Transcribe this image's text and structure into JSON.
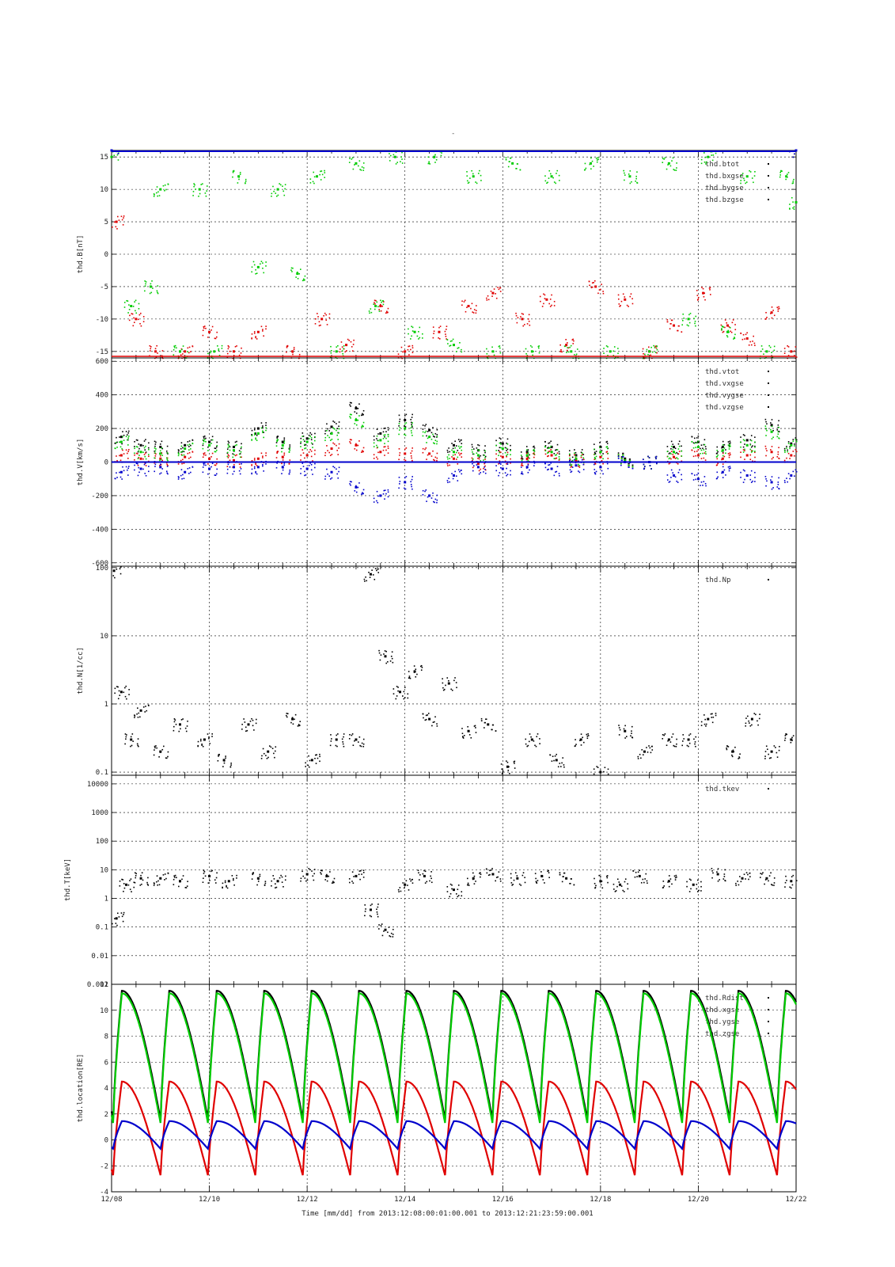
{
  "figure": {
    "top_label": "-",
    "x_axis_title": "Time [mm/dd]  from 2013:12:08:00:01:00.001  to  2013:12:21:23:59:00.001",
    "x_ticks": [
      "12/08",
      "12/10",
      "12/12",
      "12/14",
      "12/16",
      "12/18",
      "12/20",
      "12/22"
    ],
    "colors": {
      "black": "#000000",
      "red": "#e00000",
      "green": "#00cc00",
      "blue": "#0000cc"
    }
  },
  "chart_data": [
    {
      "type": "scatter",
      "ylabel": "thd.B[nT]",
      "ylim": [
        -16,
        16
      ],
      "yticks": [
        "15",
        "10",
        "5",
        "0",
        "-5",
        "-10",
        "-15"
      ],
      "legend": [
        "thd.btot",
        "thd.bxgse",
        "thd.bygse",
        "thd.bzgse"
      ],
      "legend_placement": "top-right",
      "series": [
        {
          "name": "thd.btot",
          "color": "black",
          "x": [
            0.0,
            14.0
          ],
          "y": [
            16,
            16
          ]
        },
        {
          "name": "thd.bxgse",
          "color": "red",
          "x": [
            0.1,
            0.5,
            0.9,
            1.5,
            2.0,
            2.5,
            3.0,
            3.7,
            4.3,
            4.8,
            5.5,
            6.0,
            6.7,
            7.3,
            7.8,
            8.4,
            8.9,
            9.3,
            9.9,
            10.5,
            11.0,
            11.5,
            12.1,
            12.6,
            13.0,
            13.5,
            13.9
          ],
          "y": [
            5,
            -10,
            -15,
            -15,
            -12,
            -15,
            -12,
            -15,
            -10,
            -14,
            -8,
            -15,
            -12,
            -8,
            -6,
            -10,
            -7,
            -14,
            -5,
            -7,
            -15,
            -11,
            -6,
            -11,
            -13,
            -9,
            -15
          ]
        },
        {
          "name": "thd.bygse",
          "color": "green",
          "x": [
            0.0,
            0.4,
            0.8,
            1.0,
            1.4,
            1.8,
            2.1,
            2.6,
            3.0,
            3.4,
            3.8,
            4.2,
            4.6,
            5.0,
            5.4,
            5.8,
            6.2,
            6.6,
            7.0,
            7.4,
            7.8,
            8.2,
            8.6,
            9.0,
            9.4,
            9.8,
            10.2,
            10.6,
            11.0,
            11.4,
            11.8,
            12.2,
            12.6,
            13.0,
            13.4,
            13.8,
            14.0
          ],
          "y": [
            15,
            -8,
            -5,
            10,
            -15,
            10,
            -15,
            12,
            -2,
            10,
            -3,
            12,
            -15,
            14,
            -8,
            15,
            -12,
            15,
            -14,
            12,
            -15,
            14,
            -15,
            12,
            -15,
            14,
            -15,
            12,
            -15,
            14,
            -10,
            15,
            -12,
            12,
            -15,
            12,
            8
          ]
        },
        {
          "name": "thd.bzgse",
          "color": "blue",
          "x": [
            0.0,
            14.0
          ],
          "y": [
            16,
            16
          ]
        }
      ]
    },
    {
      "type": "scatter",
      "ylabel": "thd.V[km/s]",
      "ylim": [
        -620,
        620
      ],
      "yticks": [
        "600",
        "400",
        "200",
        "0",
        "-200",
        "-400",
        "-600"
      ],
      "legend": [
        "thd.vtot",
        "thd.vxgse",
        "thd.vygse",
        "thd.vzgse"
      ],
      "legend_placement": "top-right",
      "series": [
        {
          "name": "thd.vtot",
          "color": "black",
          "x": [
            0.2,
            0.6,
            1.0,
            1.5,
            2.0,
            2.5,
            3.0,
            3.5,
            4.0,
            4.5,
            5.0,
            5.5,
            6.0,
            6.5,
            7.0,
            7.5,
            8.0,
            8.5,
            9.0,
            9.5,
            10.0,
            10.5,
            11.0,
            11.5,
            12.0,
            12.5,
            13.0,
            13.5,
            13.9
          ],
          "y": [
            150,
            100,
            90,
            100,
            120,
            90,
            200,
            120,
            140,
            210,
            320,
            170,
            250,
            190,
            100,
            70,
            110,
            60,
            90,
            40,
            90,
            20,
            0,
            90,
            120,
            90,
            130,
            220,
            110
          ]
        },
        {
          "name": "thd.vxgse",
          "color": "red",
          "x": [
            0.2,
            0.6,
            1.0,
            1.5,
            2.0,
            2.5,
            3.0,
            3.5,
            4.0,
            4.5,
            5.0,
            5.5,
            6.0,
            6.5,
            7.0,
            7.5,
            8.0,
            8.5,
            9.0,
            9.5,
            10.0,
            10.5,
            11.0,
            11.5,
            12.0,
            12.5,
            13.0,
            13.5,
            13.9
          ],
          "y": [
            40,
            20,
            20,
            30,
            20,
            10,
            20,
            30,
            40,
            80,
            100,
            60,
            50,
            50,
            20,
            -10,
            30,
            20,
            40,
            10,
            30,
            10,
            0,
            30,
            40,
            20,
            40,
            60,
            40
          ]
        },
        {
          "name": "thd.vygse",
          "color": "green",
          "x": [
            0.2,
            0.6,
            1.0,
            1.5,
            2.0,
            2.5,
            3.0,
            3.5,
            4.0,
            4.5,
            5.0,
            5.5,
            6.0,
            6.5,
            7.0,
            7.5,
            8.0,
            8.5,
            9.0,
            9.5,
            10.0,
            10.5,
            11.0,
            11.5,
            12.0,
            12.5,
            13.0,
            13.5,
            13.9
          ],
          "y": [
            120,
            60,
            50,
            80,
            100,
            70,
            170,
            100,
            120,
            170,
            250,
            130,
            200,
            150,
            60,
            40,
            80,
            40,
            60,
            20,
            60,
            10,
            0,
            60,
            90,
            70,
            100,
            180,
            100
          ]
        },
        {
          "name": "thd.vzgse",
          "color": "blue",
          "x": [
            0.2,
            0.6,
            1.0,
            1.5,
            2.0,
            2.5,
            3.0,
            3.5,
            4.0,
            4.5,
            5.0,
            5.5,
            6.0,
            6.5,
            7.0,
            7.5,
            8.0,
            8.5,
            9.0,
            9.5,
            10.0,
            10.5,
            11.0,
            11.5,
            12.0,
            12.5,
            13.0,
            13.5,
            13.9
          ],
          "y": [
            -60,
            -40,
            -30,
            -60,
            -40,
            -30,
            -30,
            -30,
            -40,
            -60,
            -150,
            -200,
            -120,
            -200,
            -80,
            -30,
            -40,
            -30,
            -40,
            -20,
            -30,
            0,
            0,
            -80,
            -100,
            -60,
            -80,
            -120,
            -80
          ]
        }
      ]
    },
    {
      "type": "scatter",
      "ylabel": "thd.N[1/cc]",
      "yscale": "log",
      "ylim": [
        0.09,
        105
      ],
      "yticks": [
        "100",
        "10",
        "1",
        "0.1"
      ],
      "legend": [
        "thd.Np"
      ],
      "legend_placement": "top-right",
      "series": [
        {
          "name": "thd.Np",
          "color": "black",
          "x": [
            0.05,
            0.2,
            0.4,
            0.6,
            1.0,
            1.4,
            1.9,
            2.3,
            2.8,
            3.2,
            3.7,
            4.1,
            4.6,
            5.0,
            5.3,
            5.6,
            5.9,
            6.2,
            6.5,
            6.9,
            7.3,
            7.7,
            8.1,
            8.6,
            9.1,
            9.6,
            10.0,
            10.5,
            10.9,
            11.4,
            11.8,
            12.2,
            12.7,
            13.1,
            13.5,
            13.9
          ],
          "y": [
            90,
            1.5,
            0.3,
            0.8,
            0.2,
            0.5,
            0.3,
            0.15,
            0.5,
            0.2,
            0.6,
            0.15,
            0.3,
            0.3,
            80,
            5,
            1.5,
            3,
            0.6,
            2,
            0.4,
            0.5,
            0.12,
            0.3,
            0.15,
            0.3,
            0.1,
            0.4,
            0.2,
            0.3,
            0.3,
            0.6,
            0.2,
            0.6,
            0.2,
            0.3
          ]
        }
      ]
    },
    {
      "type": "scatter",
      "ylabel": "thd.T[keV]",
      "yscale": "log",
      "ylim": [
        0.001,
        20000
      ],
      "yticks": [
        "10000",
        "1000",
        "100",
        "10",
        "1",
        "0.1",
        "0.01",
        "0.001"
      ],
      "legend": [
        "thd.tkev"
      ],
      "legend_placement": "top-right",
      "series": [
        {
          "name": "thd.tkev",
          "color": "black",
          "x": [
            0.1,
            0.3,
            0.6,
            1.0,
            1.4,
            2.0,
            2.4,
            3.0,
            3.4,
            4.0,
            4.4,
            5.0,
            5.3,
            5.6,
            6.0,
            6.4,
            7.0,
            7.4,
            7.8,
            8.3,
            8.8,
            9.3,
            10.0,
            10.4,
            10.8,
            11.4,
            11.9,
            12.4,
            12.9,
            13.4,
            13.9
          ],
          "y": [
            0.2,
            3,
            5,
            5,
            4,
            6,
            4,
            5,
            4,
            7,
            6,
            6,
            0.4,
            0.08,
            3,
            6,
            2,
            5,
            7,
            5,
            6,
            5,
            4,
            3,
            6,
            4,
            3,
            7,
            5,
            5,
            4
          ]
        }
      ]
    },
    {
      "type": "line",
      "ylabel": "thd.location[RE]",
      "ylim": [
        -4,
        12
      ],
      "yticks": [
        "12",
        "10",
        "8",
        "6",
        "4",
        "2",
        "0",
        "-2",
        "-4"
      ],
      "legend": [
        "thd.Rdist",
        "thd.xgse",
        "thd.ygse",
        "thd.zgse"
      ],
      "legend_placement": "top-right",
      "series": [
        {
          "name": "thd.Rdist",
          "color": "black",
          "orbit": {
            "period_days": 0.97,
            "phase_days": 0.21,
            "max": 11.5,
            "min": 1.5
          }
        },
        {
          "name": "thd.xgse",
          "color": "green",
          "orbit": {
            "period_days": 0.97,
            "phase_days": 0.21,
            "max": 11.3,
            "min": 1.2
          }
        },
        {
          "name": "thd.ygse",
          "color": "red",
          "orbit": {
            "period_days": 0.97,
            "phase_days": 0.21,
            "max": 4.5,
            "min": -2.8
          }
        },
        {
          "name": "thd.zgse",
          "color": "blue",
          "orbit": {
            "period_days": 0.97,
            "phase_days": 0.21,
            "max": 1.45,
            "min": -0.7
          }
        }
      ]
    }
  ]
}
